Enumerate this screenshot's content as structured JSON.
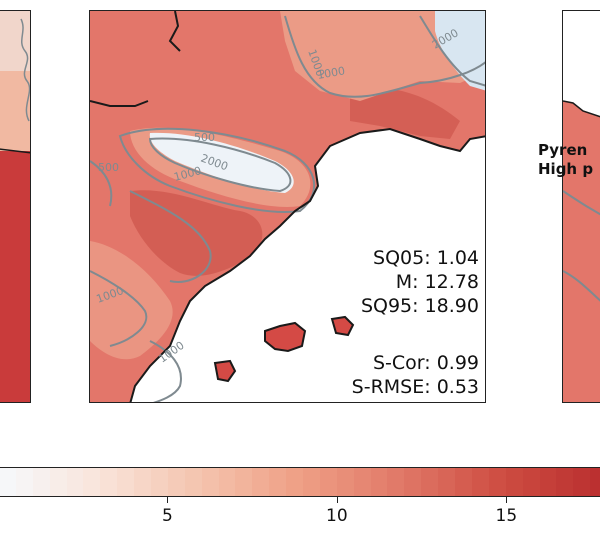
{
  "panels": {
    "center": {
      "stats": [
        {
          "label": "SQ05",
          "value": "1.04"
        },
        {
          "label": "M",
          "value": "12.78"
        },
        {
          "label": "SQ95",
          "value": "18.90"
        },
        {
          "label": "S-Cor",
          "value": "0.99"
        },
        {
          "label": "S-RMSE",
          "value": "0.53"
        }
      ],
      "contour_labels": [
        "500",
        "2000",
        "1000",
        "2000",
        "1000",
        "1000",
        "1000",
        "1000",
        "500"
      ]
    },
    "right": {
      "label_line1": "Pyren",
      "label_line2": "High p"
    }
  },
  "colorbar": {
    "ticks": [
      "5",
      "10",
      "15"
    ],
    "tick_values": [
      5,
      10,
      15
    ],
    "range": [
      0,
      18
    ],
    "colormap": "Reds",
    "colors": [
      "#f6f9fc",
      "#f9e4da",
      "#f4c3ad",
      "#ee9e84",
      "#e07766",
      "#cd4b41",
      "#b92e2e"
    ]
  },
  "colors": {
    "land": "#e3766a",
    "land_dark": "#d05a50",
    "land_light": "#eb9b86",
    "snow": "#eef3f8",
    "contour": "#7f8a90",
    "coast": "#1a1a1a",
    "sea": "#ffffff"
  }
}
